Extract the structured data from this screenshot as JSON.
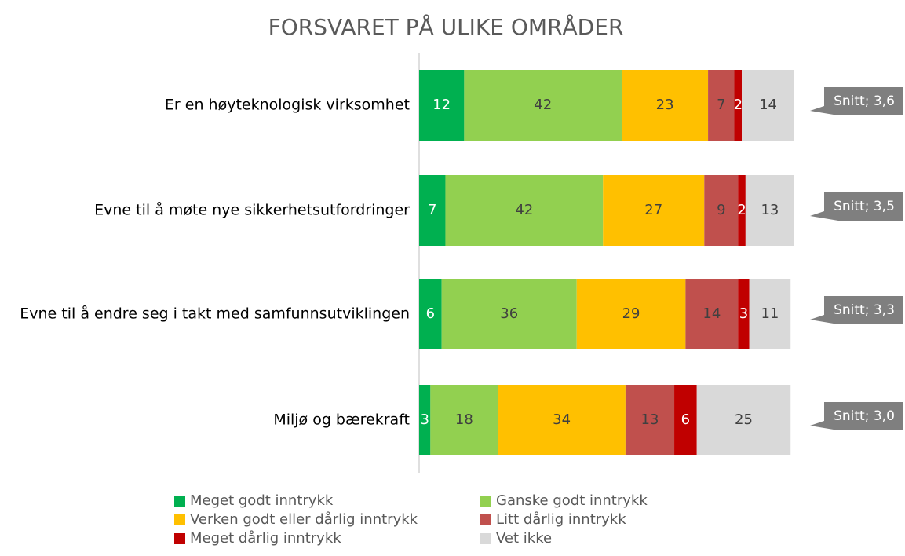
{
  "chart_data": {
    "type": "stacked_bar_horizontal",
    "title": "FORSVARET PÅ ULIKE OMRÅDER",
    "categories": [
      "Er en høyteknologisk virksomhet",
      "Evne til å møte nye sikkerhetsutfordringer",
      "Evne til å endre seg i takt med samfunnsutviklingen",
      "Miljø og bærekraft"
    ],
    "xlim": [
      0,
      100
    ],
    "series": [
      {
        "name": "Meget godt inntrykk",
        "color": "#00b050",
        "values": [
          12,
          7,
          6,
          3
        ]
      },
      {
        "name": "Ganske godt inntrykk",
        "color": "#92d050",
        "values": [
          42,
          42,
          36,
          18
        ]
      },
      {
        "name": "Verken godt eller dårlig inntrykk",
        "color": "#ffc000",
        "values": [
          23,
          27,
          29,
          34
        ]
      },
      {
        "name": "Litt dårlig inntrykk",
        "color": "#c0504d",
        "values": [
          7,
          9,
          14,
          13
        ]
      },
      {
        "name": "Meget dårlig inntrykk",
        "color": "#c00000",
        "values": [
          2,
          2,
          3,
          6
        ]
      },
      {
        "name": "Vet ikke",
        "color": "#d9d9d9",
        "values": [
          14,
          13,
          11,
          25
        ]
      }
    ],
    "annotations": [
      "Snitt; 3,6",
      "Snitt; 3,5",
      "Snitt; 3,3",
      "Snitt; 3,0"
    ]
  }
}
